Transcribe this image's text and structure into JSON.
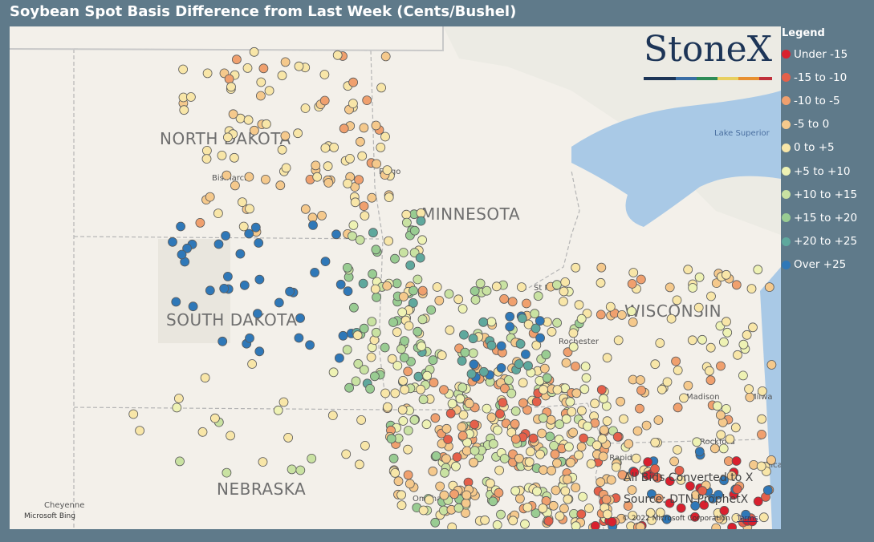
{
  "header": {
    "title": "Soybean Spot Basis Difference from Last Week (Cents/Bushel)"
  },
  "legend": {
    "title": "Legend",
    "items": [
      {
        "label": "Under -15",
        "color": "#d9202e"
      },
      {
        "label": "-15 to -10",
        "color": "#e5604a"
      },
      {
        "label": "-10 to -5",
        "color": "#f0a06e"
      },
      {
        "label": "-5 to 0",
        "color": "#f5c98c"
      },
      {
        "label": "0 to +5",
        "color": "#f8e6a8"
      },
      {
        "label": "+5 to +10",
        "color": "#eef2b4"
      },
      {
        "label": "+10 to +15",
        "color": "#c9e2a2"
      },
      {
        "label": "+15 to +20",
        "color": "#99cc92"
      },
      {
        "label": "+20 to +25",
        "color": "#5fa89d"
      },
      {
        "label": "Over +25",
        "color": "#2f78b8"
      }
    ]
  },
  "map": {
    "states": [
      "NORTH DAKOTA",
      "SOUTH DAKOTA",
      "MINNESOTA",
      "WISCONSIN",
      "NEBRASKA"
    ],
    "cities": [
      "Bismarck",
      "Fargo",
      "St Paul",
      "Rochester",
      "Madison",
      "Milwa",
      "Rockford",
      "r Rapids",
      "Omaha",
      "Cheyenne",
      "Lake Superior",
      "Chica"
    ]
  },
  "logo": "StoneX",
  "notes": [
    "All Bids Converted to X",
    "Source: DTN ProphetX"
  ],
  "credits": {
    "bing": "Microsoft Bing",
    "copyright": "© 2022 Microsoft Corporation",
    "terms": "Terms"
  }
}
